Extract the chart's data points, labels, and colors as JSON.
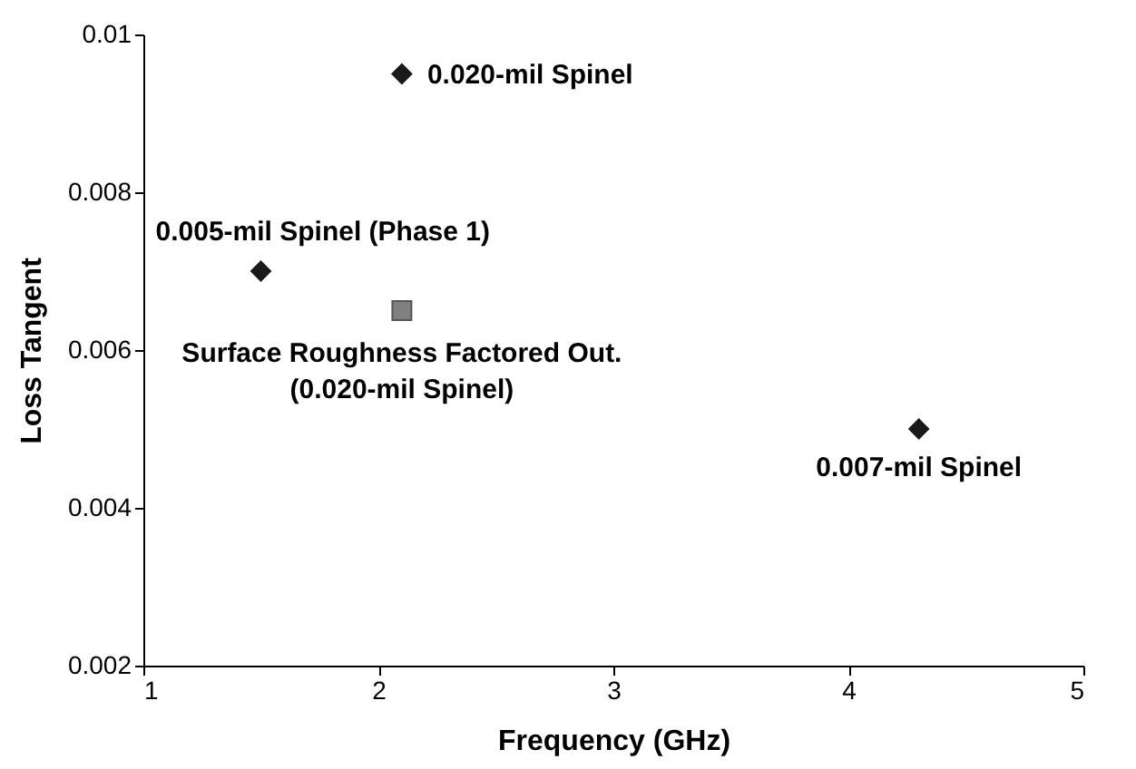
{
  "chart_data": {
    "type": "scatter",
    "xlabel": "Frequency (GHz)",
    "ylabel": "Loss Tangent",
    "xlim": [
      1,
      5
    ],
    "xticks": [
      1,
      2,
      3,
      4,
      5
    ],
    "ylim": [
      0.002,
      0.01
    ],
    "yticks": [
      0.002,
      0.004,
      0.006,
      0.008,
      0.01
    ],
    "grid": false,
    "legend": false,
    "series": [
      {
        "marker": "diamond",
        "color": "#1a1a1a",
        "x": [
          1.5,
          2.1,
          4.3
        ],
        "values": [
          0.007,
          0.0095,
          0.005
        ]
      },
      {
        "marker": "square",
        "color": "#808080",
        "x": [
          2.1
        ],
        "values": [
          0.0065
        ]
      }
    ],
    "annotations": [
      {
        "text": "0.020-mil Spinel",
        "x": 2.1,
        "y": 0.0095
      },
      {
        "text": "0.005-mil Spinel (Phase 1)",
        "x": 1.5,
        "y": 0.007
      },
      {
        "text": "Surface Roughness Factored Out.\n(0.020-mil Spinel)",
        "x": 2.1,
        "y": 0.0065
      },
      {
        "text": "0.007-mil Spinel",
        "x": 4.3,
        "y": 0.005
      }
    ]
  }
}
